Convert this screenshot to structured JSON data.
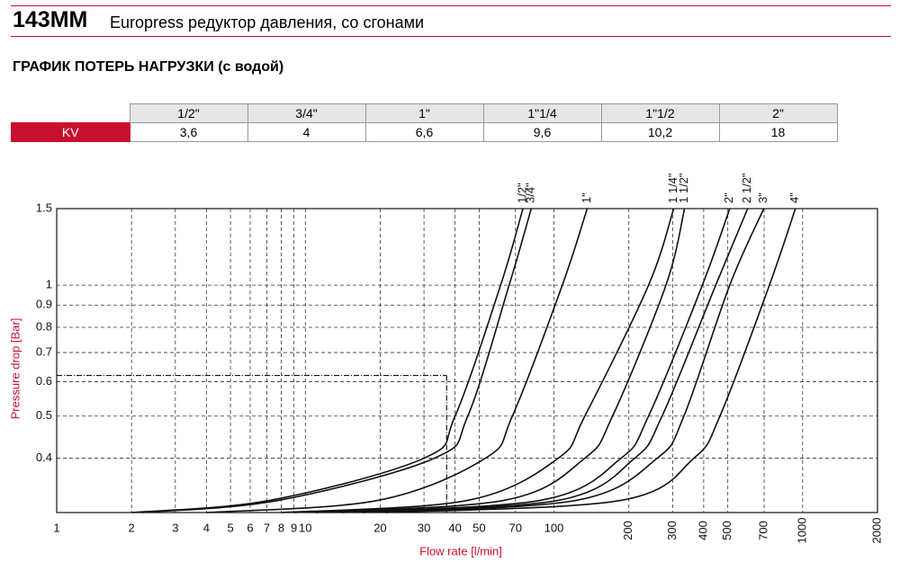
{
  "header": {
    "code": "143MM",
    "title": "Europress редуктор давления, со сгонами"
  },
  "section_title": "ГРАФИК ПОТЕРЬ НАГРУЗКИ (с водой)",
  "table": {
    "columns": [
      "1/2\"",
      "3/4\"",
      "1\"",
      "1\"1/4",
      "1\"1/2",
      "2\""
    ],
    "rows": [
      [
        "KV",
        "3,6",
        "4",
        "6,6",
        "9,6",
        "10,2",
        "18"
      ]
    ]
  },
  "chart_data": {
    "type": "line",
    "x_label": "Flow rate [l/min]",
    "y_label": "Pressure drop [Bar]",
    "xlim": [
      1,
      2000
    ],
    "ylim": [
      0.3,
      1.5
    ],
    "x_log": true,
    "y_log": true,
    "grid": true,
    "xticks": [
      1,
      2,
      3,
      4,
      5,
      6,
      7,
      8,
      9,
      10,
      20,
      30,
      40,
      50,
      70,
      100,
      200,
      300,
      400,
      500,
      700,
      1000,
      2000
    ],
    "yticks": [
      0.4,
      0.5,
      0.6,
      0.7,
      0.8,
      0.9,
      1,
      1.5
    ],
    "reference_point": {
      "x": 37,
      "y": 0.62
    },
    "series": [
      {
        "name": "1/2\"",
        "color": "#111111",
        "x": [
          2,
          7.2,
          30,
          40,
          61,
          75
        ],
        "values": [
          0.3,
          0.32,
          0.4,
          0.5,
          1,
          1.5
        ]
      },
      {
        "name": "3/4\"",
        "color": "#111111",
        "x": [
          2.2,
          7.8,
          33,
          45,
          66,
          81
        ],
        "values": [
          0.3,
          0.32,
          0.4,
          0.5,
          1,
          1.5
        ]
      },
      {
        "name": "1\"",
        "color": "#111111",
        "x": [
          4,
          19.6,
          53,
          68,
          108,
          136
        ],
        "values": [
          0.3,
          0.32,
          0.4,
          0.5,
          1,
          1.5
        ]
      },
      {
        "name": "1 1/4\"",
        "color": "#111111",
        "x": [
          8,
          45,
          104,
          133,
          240,
          303
        ],
        "values": [
          0.3,
          0.32,
          0.4,
          0.5,
          1,
          1.5
        ]
      },
      {
        "name": "1 1/2\"",
        "color": "#111111",
        "x": [
          9,
          63,
          133,
          172,
          282,
          335
        ],
        "values": [
          0.3,
          0.32,
          0.4,
          0.5,
          1,
          1.5
        ]
      },
      {
        "name": "2\"",
        "color": "#111111",
        "x": [
          11,
          88,
          186,
          240,
          395,
          509
        ],
        "values": [
          0.3,
          0.32,
          0.4,
          0.5,
          1,
          1.5
        ]
      },
      {
        "name": "2 1/2\"",
        "color": "#111111",
        "x": [
          14,
          104,
          211,
          272,
          447,
          601
        ],
        "values": [
          0.3,
          0.32,
          0.4,
          0.5,
          1,
          1.5
        ]
      },
      {
        "name": "3\"",
        "color": "#111111",
        "x": [
          17,
          123,
          260,
          333,
          509,
          698
        ],
        "values": [
          0.3,
          0.32,
          0.4,
          0.5,
          1,
          1.5
        ]
      },
      {
        "name": "4\"",
        "color": "#111111",
        "x": [
          21,
          186,
          365,
          465,
          735,
          935
        ],
        "values": [
          0.3,
          0.32,
          0.4,
          0.5,
          1,
          1.5
        ]
      }
    ]
  }
}
